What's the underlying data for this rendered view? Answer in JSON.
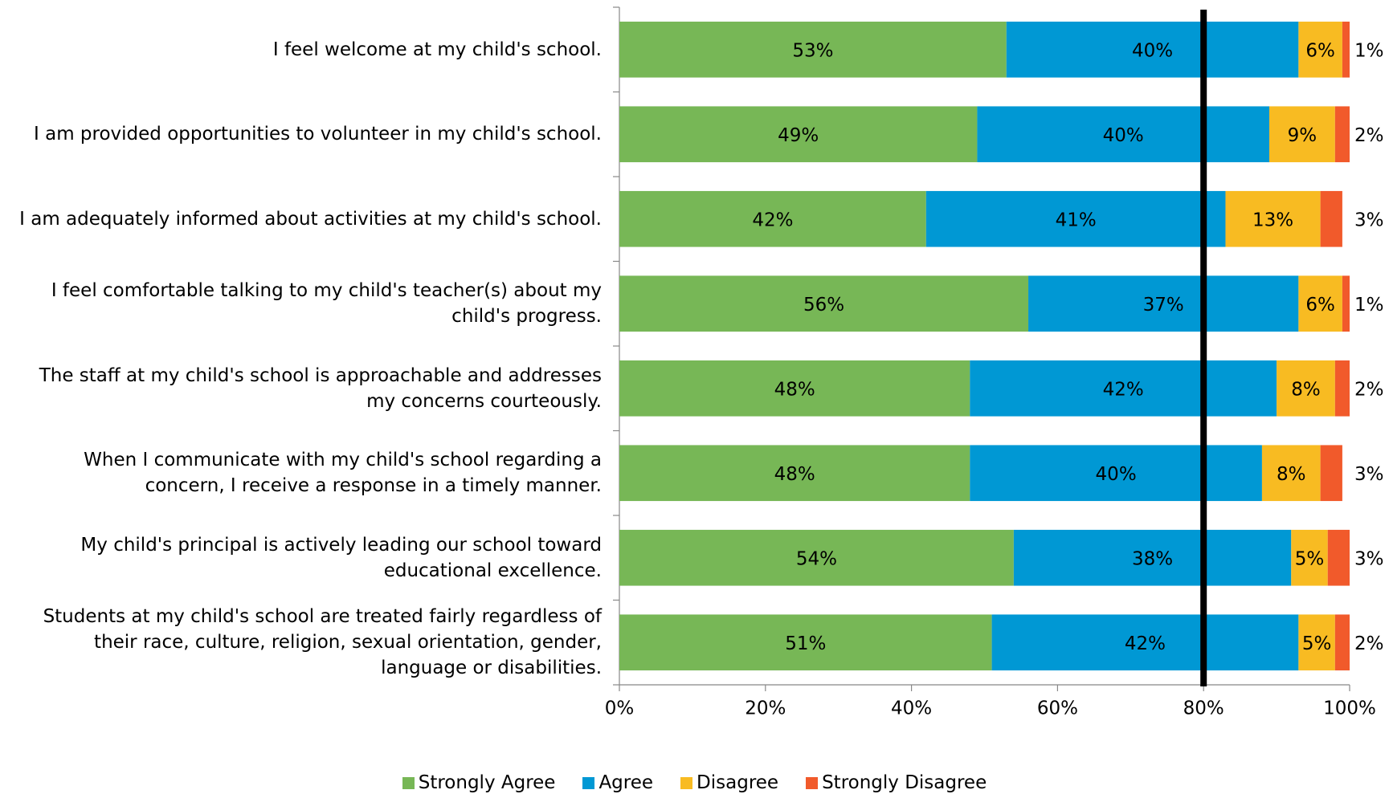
{
  "chart_data": {
    "type": "stacked_bar_horizontal",
    "categories": [
      "I feel welcome at my child's school.",
      "I am provided opportunities to volunteer in my child's school.",
      "I am adequately informed about activities at my child's school.",
      "I feel comfortable talking to my child's teacher(s) about my child's progress.",
      "The staff at my child's school is approachable and addresses my concerns courteously.",
      "When I communicate with my child's school regarding a concern, I receive a response in a timely manner.",
      "My child's principal is actively leading our school toward educational excellence.",
      "Students at my child's school are treated fairly regardless of their race, culture, religion, sexual orientation, gender, language or disabilities."
    ],
    "series": [
      {
        "name": "Strongly Agree",
        "color": "#77b756",
        "values": [
          53,
          49,
          42,
          56,
          48,
          48,
          54,
          51
        ],
        "value_labels": [
          "53%",
          "49%",
          "42%",
          "56%",
          "48%",
          "48%",
          "54%",
          "51%"
        ]
      },
      {
        "name": "Agree",
        "color": "#0098d4",
        "values": [
          40,
          40,
          41,
          37,
          42,
          40,
          38,
          42
        ],
        "value_labels": [
          "40%",
          "40%",
          "41%",
          "37%",
          "42%",
          "40%",
          "38%",
          "42%"
        ]
      },
      {
        "name": "Disagree",
        "color": "#f8bb22",
        "values": [
          6,
          9,
          13,
          6,
          8,
          8,
          5,
          5
        ],
        "value_labels": [
          "6%",
          "9%",
          "13%",
          "6%",
          "8%",
          "8%",
          "5%",
          "5%"
        ]
      },
      {
        "name": "Strongly Disagree",
        "color": "#f15a2b",
        "values": [
          1,
          2,
          3,
          1,
          2,
          3,
          3,
          2
        ],
        "value_labels": [
          "1%",
          "2%",
          "3%",
          "1%",
          "2%",
          "3%",
          "3%",
          "2%"
        ]
      }
    ],
    "xlim": [
      0,
      100
    ],
    "xticks": [
      {
        "value": 0,
        "label": "0%"
      },
      {
        "value": 20,
        "label": "20%"
      },
      {
        "value": 40,
        "label": "40%"
      },
      {
        "value": 60,
        "label": "60%"
      },
      {
        "value": 80,
        "label": "80%"
      },
      {
        "value": 100,
        "label": "100%"
      }
    ],
    "reference_value": 80,
    "legend": "bottom"
  }
}
